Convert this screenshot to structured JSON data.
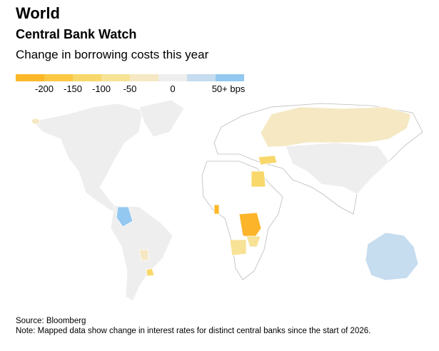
{
  "header": {
    "kicker": "World",
    "title": "Central Bank Watch",
    "subtitle": "Change in borrowing costs this year"
  },
  "legend": {
    "bins": [
      "#fdb827",
      "#fcc844",
      "#f8d86a",
      "#f7e296",
      "#f5e8c3",
      "#eeeeee",
      "#c6dcef",
      "#93c8f0"
    ],
    "ticks": [
      "-200",
      "-150",
      "-100",
      "-50",
      "0",
      "50+ bps"
    ],
    "no_data_color": "#ffffff",
    "no_change_color": "#eeeeee"
  },
  "map": {
    "highlighted": [
      {
        "region": "Russia",
        "color": "#f5e8c3"
      },
      {
        "region": "Colombia",
        "color": "#93c8f0"
      },
      {
        "region": "Australia",
        "color": "#c6dcef"
      },
      {
        "region": "Ghana",
        "color": "#fdb827"
      },
      {
        "region": "DR Congo",
        "color": "#fcb42a"
      },
      {
        "region": "Egypt",
        "color": "#f8d86a"
      },
      {
        "region": "Turkey",
        "color": "#f8d86a"
      },
      {
        "region": "Angola",
        "color": "#f7e296"
      },
      {
        "region": "Zambia",
        "color": "#f7e296"
      },
      {
        "region": "Paraguay",
        "color": "#f5e8c3"
      },
      {
        "region": "Uruguay",
        "color": "#f8d86a"
      },
      {
        "region": "Iceland",
        "color": "#f5e8c3"
      }
    ]
  },
  "footer": {
    "source": "Source: Bloomberg",
    "note": "Note: Mapped data show change in interest rates for distinct central banks since the start of 2026."
  }
}
